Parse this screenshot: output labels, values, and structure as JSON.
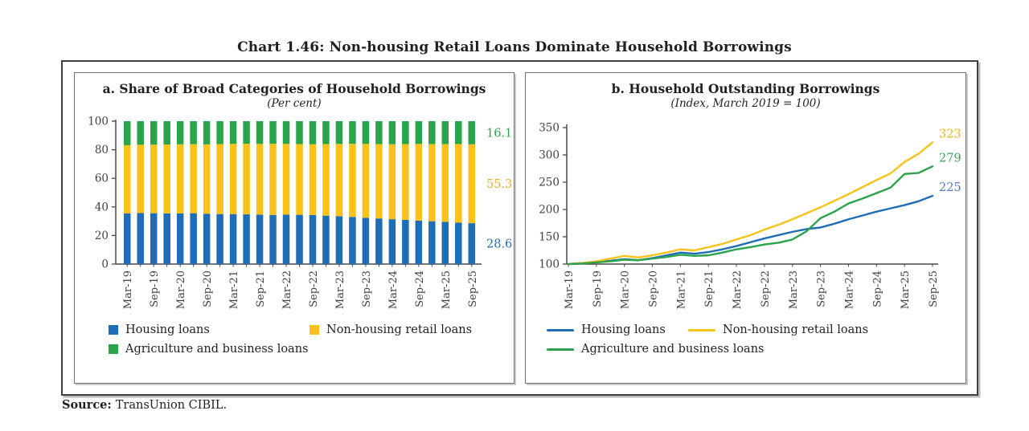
{
  "figure": {
    "title": "Chart 1.46: Non-housing Retail Loans Dominate Household Borrowings",
    "source": {
      "label": "Source:",
      "text": "TransUnion CIBIL."
    }
  },
  "colors": {
    "housing": "#1F6DB6",
    "non_housing": "#F9C21A",
    "agri_business": "#2AA44A",
    "axis": "#4a4a4d",
    "axis_text": "#414043"
  },
  "panels": {
    "a": {
      "title": "a. Share of Broad Categories of Household Borrowings",
      "subtitle": "(Per cent)",
      "legend": [
        "Housing loans",
        "Non-housing retail loans",
        "Agriculture and business loans"
      ]
    },
    "b": {
      "title": "b. Household Outstanding Borrowings",
      "subtitle": "(Index, March 2019 = 100)",
      "legend": [
        "Housing loans",
        "Non-housing retail loans",
        "Agriculture and business loans"
      ]
    }
  },
  "chart_data": [
    {
      "type": "bar",
      "stacked": true,
      "title": "a. Share of Broad Categories of Household Borrowings",
      "ylabel": "Per cent",
      "categories": [
        "Mar-19",
        "Jun-19",
        "Sep-19",
        "Dec-19",
        "Mar-20",
        "Jun-20",
        "Sep-20",
        "Dec-20",
        "Mar-21",
        "Jun-21",
        "Sep-21",
        "Dec-21",
        "Mar-22",
        "Jun-22",
        "Sep-22",
        "Dec-22",
        "Mar-23",
        "Jun-23",
        "Sep-23",
        "Dec-23",
        "Mar-24",
        "Jun-24",
        "Sep-24",
        "Dec-24",
        "Mar-25",
        "Jun-25",
        "Sep-25"
      ],
      "x_labels_every": 2,
      "ylim": [
        0,
        100
      ],
      "yticks": [
        0,
        20,
        40,
        60,
        80,
        100
      ],
      "grid": false,
      "legend_position": "bottom",
      "series": [
        {
          "name": "Housing loans",
          "color_key": "housing",
          "end_label": "28.6",
          "label_color": "#2B6CB5",
          "values": [
            35.4,
            35.7,
            35.6,
            35.5,
            35.4,
            35.6,
            35.2,
            35.0,
            35.0,
            34.8,
            34.6,
            34.4,
            34.6,
            34.5,
            34.3,
            33.9,
            33.5,
            33.0,
            32.4,
            31.9,
            31.4,
            30.9,
            30.4,
            30.0,
            29.5,
            29.0,
            28.6
          ]
        },
        {
          "name": "Non-housing retail loans",
          "color_key": "non_housing",
          "end_label": "55.3",
          "label_color": "#E9AC25",
          "values": [
            47.8,
            47.8,
            48.0,
            48.2,
            48.4,
            48.3,
            48.6,
            49.0,
            49.1,
            49.4,
            49.5,
            49.8,
            49.5,
            49.5,
            49.6,
            50.1,
            50.6,
            51.2,
            51.7,
            52.1,
            52.5,
            53.1,
            53.7,
            54.0,
            54.5,
            55.0,
            55.3
          ]
        },
        {
          "name": "Agriculture and business loans",
          "color_key": "agri_business",
          "end_label": "16.1",
          "label_color": "#2AA44A",
          "values": [
            16.8,
            16.5,
            16.4,
            16.3,
            16.2,
            16.1,
            16.2,
            16.0,
            15.9,
            15.8,
            15.9,
            15.8,
            15.9,
            16.0,
            16.1,
            16.0,
            15.9,
            15.8,
            15.9,
            16.0,
            16.1,
            16.0,
            15.9,
            16.0,
            16.0,
            16.0,
            16.1
          ]
        }
      ]
    },
    {
      "type": "line",
      "title": "b. Household Outstanding Borrowings",
      "ylabel": "Index, March 2019 = 100",
      "x": [
        "Mar-19",
        "Jun-19",
        "Sep-19",
        "Dec-19",
        "Mar-20",
        "Jun-20",
        "Sep-20",
        "Dec-20",
        "Mar-21",
        "Jun-21",
        "Sep-21",
        "Dec-21",
        "Mar-22",
        "Jun-22",
        "Sep-22",
        "Dec-22",
        "Mar-23",
        "Jun-23",
        "Sep-23",
        "Dec-23",
        "Mar-24",
        "Jun-24",
        "Sep-24",
        "Dec-24",
        "Mar-25",
        "Jun-25",
        "Sep-25"
      ],
      "x_labels_every": 2,
      "ylim": [
        100,
        350
      ],
      "yticks": [
        100,
        150,
        200,
        250,
        300,
        350
      ],
      "grid": false,
      "legend_position": "bottom",
      "series": [
        {
          "name": "Housing loans",
          "color_key": "housing",
          "end_label": "225",
          "label_color": "#5479C6",
          "values": [
            100,
            102,
            104,
            106,
            109,
            107,
            111,
            116,
            121,
            119,
            122,
            127,
            133,
            140,
            147,
            153,
            159,
            164,
            167,
            174,
            182,
            189,
            196,
            202,
            208,
            215,
            225
          ]
        },
        {
          "name": "Non-housing retail loans",
          "color_key": "non_housing",
          "end_label": "323",
          "label_color": "#EFB41F",
          "values": [
            100,
            102,
            105,
            110,
            115,
            112,
            116,
            121,
            127,
            125,
            131,
            137,
            145,
            153,
            163,
            172,
            182,
            193,
            204,
            216,
            228,
            241,
            254,
            266,
            287,
            302,
            323
          ]
        },
        {
          "name": "Agriculture and business loans",
          "color_key": "agri_business",
          "end_label": "279",
          "label_color": "#3DA45B",
          "values": [
            100,
            101,
            103,
            105,
            108,
            107,
            110,
            113,
            117,
            115,
            116,
            121,
            127,
            131,
            136,
            139,
            145,
            160,
            184,
            196,
            211,
            220,
            230,
            240,
            265,
            267,
            279
          ]
        }
      ]
    }
  ]
}
